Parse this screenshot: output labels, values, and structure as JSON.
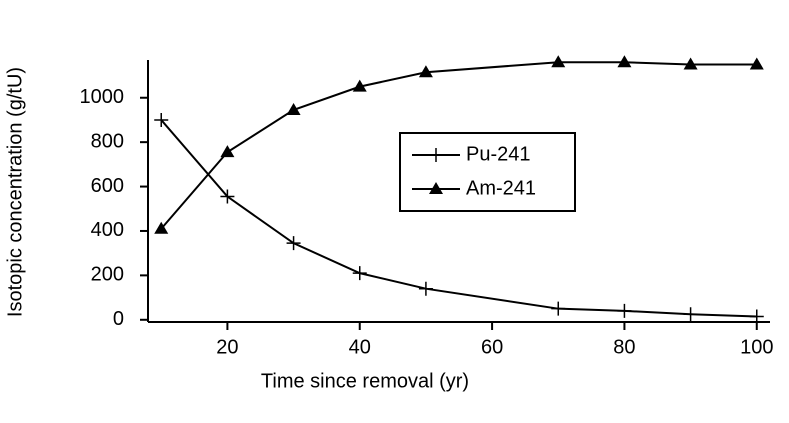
{
  "chart_data": {
    "type": "line",
    "x_label": "Time since removal (yr)",
    "y_label": "Isotopic concentration (g/tU)",
    "x": [
      10,
      20,
      30,
      40,
      50,
      70,
      80,
      90,
      100
    ],
    "series": [
      {
        "name": "Pu-241",
        "color": "#000000",
        "marker": "plus",
        "values": [
          900,
          555,
          345,
          210,
          140,
          50,
          40,
          25,
          15
        ]
      },
      {
        "name": "Am-241",
        "color": "#000000",
        "marker": "triangle",
        "values": [
          410,
          755,
          945,
          1050,
          1115,
          1160,
          1160,
          1150,
          1150
        ]
      }
    ],
    "xlim": [
      8,
      102
    ],
    "xticks": [
      20,
      40,
      60,
      80,
      100
    ],
    "ylim": [
      -10,
      1170
    ],
    "yticks": [
      0,
      200,
      400,
      600,
      800,
      1000
    ],
    "grid": false
  }
}
